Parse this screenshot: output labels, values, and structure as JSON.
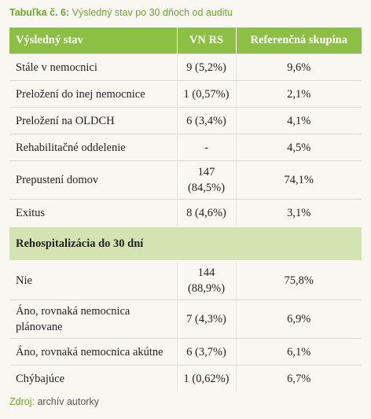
{
  "caption": {
    "label": "Tabuľka č. 6:",
    "text": "Výsledný stav po 30 dňoch od auditu"
  },
  "table": {
    "header": [
      "Výsledný stav",
      "VN RS",
      "Referenčná skupina"
    ],
    "rows": [
      [
        "Stále v nemocnici",
        "9 (5,2%)",
        "9,6%"
      ],
      [
        "Preložení do inej nemoc­nice",
        "1 (0,57%)",
        "2,1%"
      ],
      [
        "Preložení na OLDCH",
        "6 (3,4%)",
        "4,1%"
      ],
      [
        "Rehabilitačné oddelenie",
        "-",
        "4,5%"
      ],
      [
        "Prepustení domov",
        "147 (84,5%)",
        "74,1%"
      ],
      [
        "Exitus",
        "8 (4,6%)",
        "3,1%"
      ]
    ],
    "section": "Rehospitalizácia do 30 dní",
    "section_rows": [
      [
        "Nie",
        "144 (88,9%)",
        "75,8%"
      ],
      [
        "Áno, rovnaká nemocnica plánovane",
        "7 (4,3%)",
        "6,9%"
      ],
      [
        "Áno, rovnaká nemocnica akútne",
        "6 (3,7%)",
        "6,1%"
      ],
      [
        "Chýbajúce",
        "1 (0,62%)",
        "6,7%"
      ]
    ]
  },
  "source": {
    "label": "Zdroj:",
    "text": "archív autorky"
  }
}
